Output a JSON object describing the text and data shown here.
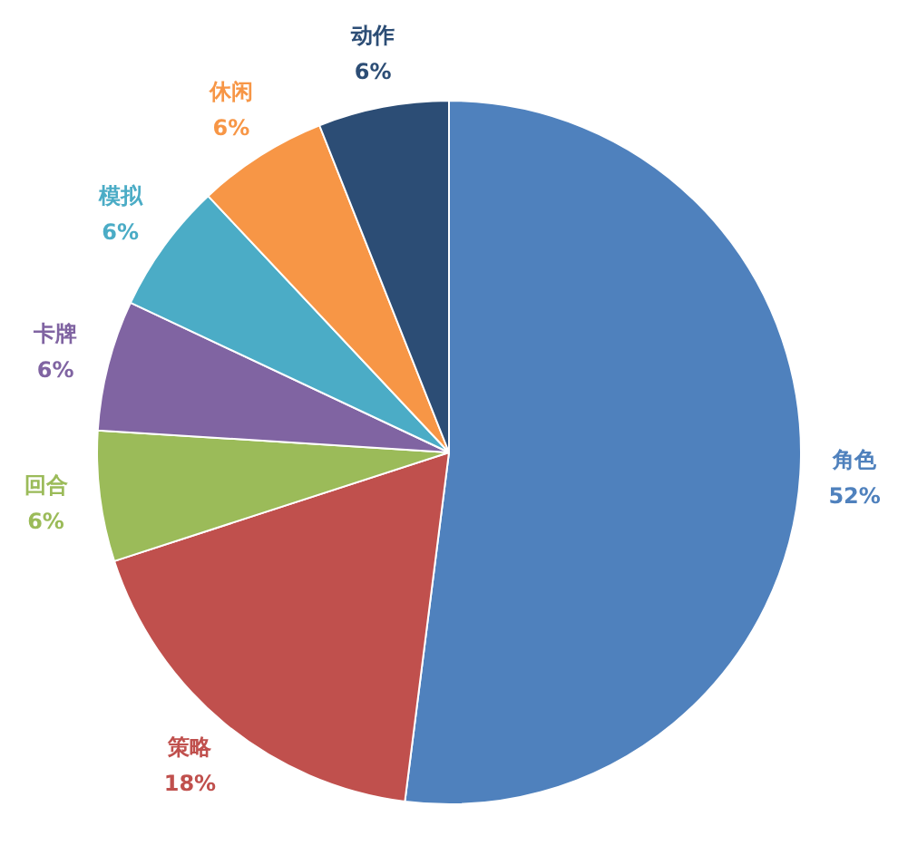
{
  "chart_data": {
    "type": "pie",
    "categories": [
      "角色",
      "策略",
      "回合",
      "卡牌",
      "模拟",
      "休闲",
      "动作"
    ],
    "values": [
      52,
      18,
      6,
      6,
      6,
      6,
      6
    ],
    "value_labels": [
      "52%",
      "18%",
      "6%",
      "6%",
      "6%",
      "6%",
      "6%"
    ],
    "colors": [
      "#4f81bd",
      "#c0504d",
      "#9bbb59",
      "#8064a2",
      "#4bacc6",
      "#f79646",
      "#2c4d75"
    ],
    "legend": false
  }
}
